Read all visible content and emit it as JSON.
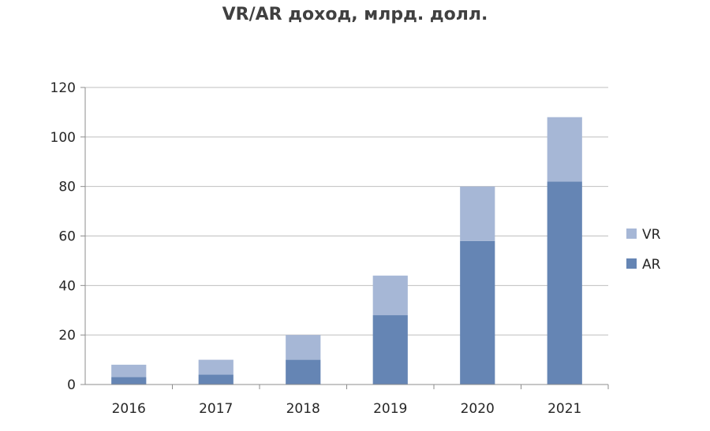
{
  "chart_data": {
    "type": "bar",
    "stacked": true,
    "title": "VR/AR доход, млрд. долл.",
    "categories": [
      "2016",
      "2017",
      "2018",
      "2019",
      "2020",
      "2021"
    ],
    "series": [
      {
        "name": "AR",
        "values": [
          3,
          4,
          10,
          28,
          58,
          82
        ],
        "color": "#6585b4"
      },
      {
        "name": "VR",
        "values": [
          5,
          6,
          10,
          16,
          22,
          26
        ],
        "color": "#a6b7d6"
      }
    ],
    "ylim": [
      0,
      120
    ],
    "yticks": [
      0,
      20,
      40,
      60,
      80,
      100,
      120
    ],
    "grid": true,
    "legend": {
      "position": "right",
      "order": [
        "VR",
        "AR"
      ]
    }
  }
}
